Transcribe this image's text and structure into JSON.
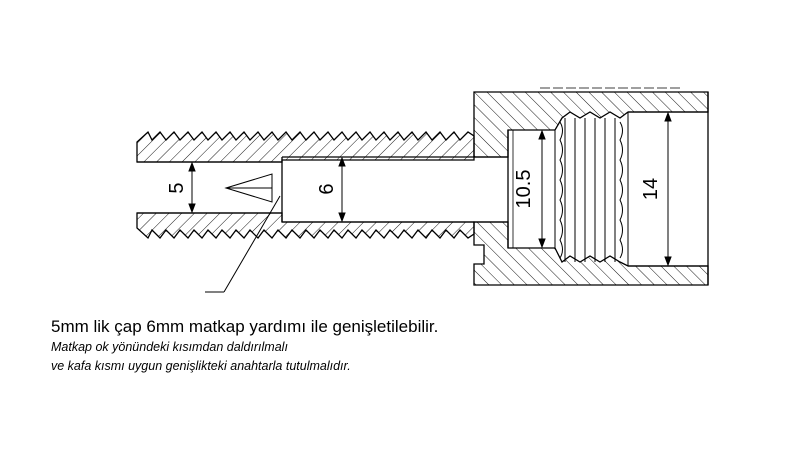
{
  "dimensions": {
    "d1": "5",
    "d2": "6",
    "d3": "10.5",
    "d4": "14"
  },
  "caption": {
    "line1": "5mm lik çap 6mm matkap yardımı ile genişletilebilir.",
    "line2": "Matkap ok yönündeki kısımdan daldırılmalı",
    "line3": "ve kafa kısmı uygun genişlikteki anahtarla tutulmalıdır."
  }
}
